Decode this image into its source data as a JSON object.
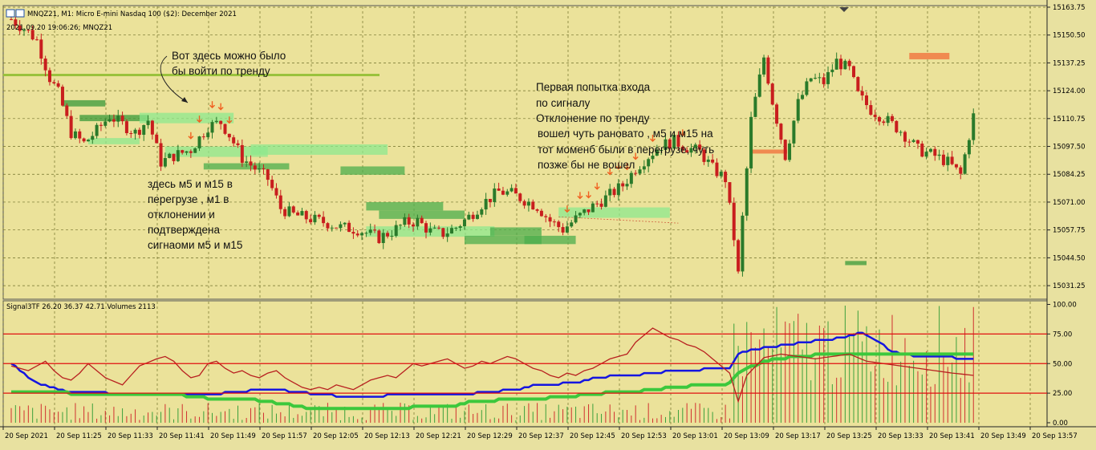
{
  "chart_title": "MNQZ21, M1:  Micro E-mini Nasdaq 100 ($2): December 2021",
  "cursor_info": "2021.09.20 19:06:26; MNQZ21",
  "indicator_label": "Signal3TF 26.20 36.37 42.71 Volumes 2113",
  "colors": {
    "background": "#ebe29a",
    "grid": "#70702a",
    "bull": "#2a7a2a",
    "bear": "#c81e1e",
    "line_blue": "#1515e0",
    "line_green": "#3cc83c",
    "line_red": "#b82020",
    "level_red": "#e01010",
    "zone_green": "#8ee88e",
    "zone_orange": "#f08a50"
  },
  "annotations": [
    {
      "lines": [
        "Вот здесь можно было",
        "бы войти по тренду"
      ]
    },
    {
      "lines": [
        "Первая попытка входа",
        "по сигналу",
        "Отклонение по тренду",
        "вошел чуть рановато , м5 и м15 на",
        "тот моменб были в перегрузе, чуть",
        "позже бы не вошел"
      ]
    },
    {
      "lines": [
        "здесь м5 и м15 в",
        "перегрузе , м1 в",
        "отклонении и",
        "подтверждена",
        "сигнаоми м5 и м15"
      ]
    }
  ],
  "chart_data": [
    {
      "type": "candlestick",
      "symbol": "MNQZ21",
      "timeframe": "M1",
      "price_axis_ticks": [
        "15163.75",
        "15150.50",
        "15137.25",
        "15124.00",
        "15110.75",
        "15097.50",
        "15084.25",
        "15071.00",
        "15057.75",
        "15044.50",
        "15031.25"
      ],
      "ylim": [
        15024.8,
        15164.5
      ],
      "time_axis_ticks": [
        "20 Sep 2021",
        "20 Sep 11:25",
        "20 Sep 11:33",
        "20 Sep 11:41",
        "20 Sep 11:49",
        "20 Sep 11:57",
        "20 Sep 12:05",
        "20 Sep 12:13",
        "20 Sep 12:21",
        "20 Sep 12:29",
        "20 Sep 12:37",
        "20 Sep 12:45",
        "20 Sep 12:53",
        "20 Sep 13:01",
        "20 Sep 13:09",
        "20 Sep 13:17",
        "20 Sep 13:25",
        "20 Sep 13:33",
        "20 Sep 13:41",
        "20 Sep 13:49",
        "20 Sep 13:57"
      ],
      "close_waypoints": [
        [
          0,
          15158
        ],
        [
          4,
          15152
        ],
        [
          6,
          15148
        ],
        [
          9,
          15130
        ],
        [
          11,
          15123
        ],
        [
          14,
          15104
        ],
        [
          17,
          15099
        ],
        [
          20,
          15105
        ],
        [
          23,
          15112
        ],
        [
          26,
          15108
        ],
        [
          29,
          15104
        ],
        [
          32,
          15110
        ],
        [
          35,
          15090
        ],
        [
          38,
          15093
        ],
        [
          42,
          15096
        ],
        [
          46,
          15107
        ],
        [
          49,
          15109
        ],
        [
          51,
          15103
        ],
        [
          54,
          15092
        ],
        [
          57,
          15087
        ],
        [
          60,
          15082
        ],
        [
          63,
          15068
        ],
        [
          66,
          15065
        ],
        [
          70,
          15063
        ],
        [
          74,
          15061
        ],
        [
          77,
          15059
        ],
        [
          81,
          15058
        ],
        [
          86,
          15054
        ],
        [
          89,
          15057
        ],
        [
          92,
          15061
        ],
        [
          95,
          15062
        ],
        [
          98,
          15057
        ],
        [
          101,
          15056
        ],
        [
          104,
          15059
        ],
        [
          107,
          15064
        ],
        [
          110,
          15070
        ],
        [
          114,
          15076
        ],
        [
          117,
          15075
        ],
        [
          120,
          15072
        ],
        [
          123,
          15069
        ],
        [
          126,
          15062
        ],
        [
          129,
          15058
        ],
        [
          132,
          15063
        ],
        [
          136,
          15069
        ],
        [
          139,
          15073
        ],
        [
          143,
          15079
        ],
        [
          146,
          15087
        ],
        [
          149,
          15093
        ],
        [
          152,
          15098
        ],
        [
          155,
          15100
        ],
        [
          158,
          15097
        ],
        [
          161,
          15095
        ],
        [
          164,
          15087
        ],
        [
          167,
          15082
        ],
        [
          170,
          15040
        ],
        [
          173,
          15110
        ],
        [
          176,
          15140
        ],
        [
          178,
          15119
        ],
        [
          181,
          15093
        ],
        [
          184,
          15118
        ],
        [
          187,
          15130
        ],
        [
          190,
          15128
        ],
        [
          193,
          15138
        ],
        [
          196,
          15134
        ],
        [
          198,
          15122
        ],
        [
          201,
          15115
        ],
        [
          204,
          15111
        ],
        [
          208,
          15105
        ],
        [
          212,
          15096
        ],
        [
          216,
          15093
        ],
        [
          219,
          15090
        ],
        [
          222,
          15084
        ],
        [
          225,
          15112
        ]
      ],
      "price_levels": [
        15131.5
      ],
      "signal_arrows_count": 24
    },
    {
      "type": "line",
      "name": "Signal3TF",
      "values_label": "26.20 36.37 42.71",
      "volumes": "2113",
      "y_ticks": [
        "100.00",
        "75.00",
        "50.00",
        "25.00",
        "0.00"
      ],
      "ylim": [
        0,
        100
      ],
      "levels": [
        25,
        50,
        75
      ],
      "series": [
        {
          "color": "blue",
          "waypoints": [
            [
              0,
              50
            ],
            [
              3,
              42
            ],
            [
              5,
              35
            ],
            [
              9,
              30
            ],
            [
              12,
              27
            ],
            [
              16,
              26
            ],
            [
              22,
              25
            ],
            [
              28,
              24
            ],
            [
              34,
              24
            ],
            [
              42,
              24
            ],
            [
              50,
              25
            ],
            [
              56,
              27
            ],
            [
              62,
              28
            ],
            [
              67,
              26
            ],
            [
              72,
              24
            ],
            [
              78,
              22
            ],
            [
              84,
              22
            ],
            [
              92,
              24
            ],
            [
              100,
              24
            ],
            [
              106,
              24
            ],
            [
              112,
              26
            ],
            [
              118,
              28
            ],
            [
              122,
              31
            ],
            [
              126,
              32
            ],
            [
              132,
              34
            ],
            [
              136,
              37
            ],
            [
              140,
              39
            ],
            [
              145,
              40
            ],
            [
              150,
              42
            ],
            [
              156,
              44
            ],
            [
              162,
              45
            ],
            [
              168,
              45
            ],
            [
              170,
              58
            ],
            [
              174,
              62
            ],
            [
              180,
              65
            ],
            [
              186,
              68
            ],
            [
              190,
              70
            ],
            [
              195,
              72
            ],
            [
              199,
              76
            ],
            [
              202,
              70
            ],
            [
              206,
              60
            ],
            [
              212,
              56
            ],
            [
              220,
              55
            ],
            [
              225,
              54
            ]
          ]
        },
        {
          "color": "green",
          "waypoints": [
            [
              0,
              26
            ],
            [
              10,
              26
            ],
            [
              16,
              24
            ],
            [
              24,
              24
            ],
            [
              30,
              24
            ],
            [
              40,
              23
            ],
            [
              48,
              20
            ],
            [
              54,
              20
            ],
            [
              60,
              18
            ],
            [
              70,
              12
            ],
            [
              80,
              12
            ],
            [
              88,
              12
            ],
            [
              94,
              13
            ],
            [
              98,
              14
            ],
            [
              104,
              14
            ],
            [
              108,
              18
            ],
            [
              114,
              19
            ],
            [
              120,
              20
            ],
            [
              126,
              21
            ],
            [
              130,
              22
            ],
            [
              136,
              24
            ],
            [
              142,
              26
            ],
            [
              146,
              26
            ],
            [
              150,
              28
            ],
            [
              156,
              30
            ],
            [
              162,
              32
            ],
            [
              168,
              33
            ],
            [
              170,
              42
            ],
            [
              176,
              52
            ],
            [
              182,
              55
            ],
            [
              188,
              57
            ],
            [
              194,
              58
            ],
            [
              198,
              58
            ],
            [
              206,
              58
            ],
            [
              215,
              58
            ],
            [
              225,
              57
            ]
          ]
        },
        {
          "color": "red",
          "waypoints": [
            [
              0,
              48
            ],
            [
              4,
              44
            ],
            [
              6,
              48
            ],
            [
              8,
              52
            ],
            [
              10,
              44
            ],
            [
              12,
              38
            ],
            [
              14,
              36
            ],
            [
              16,
              42
            ],
            [
              18,
              50
            ],
            [
              20,
              44
            ],
            [
              22,
              38
            ],
            [
              24,
              35
            ],
            [
              26,
              32
            ],
            [
              28,
              40
            ],
            [
              30,
              48
            ],
            [
              34,
              54
            ],
            [
              36,
              56
            ],
            [
              38,
              52
            ],
            [
              40,
              44
            ],
            [
              42,
              38
            ],
            [
              44,
              40
            ],
            [
              46,
              50
            ],
            [
              48,
              52
            ],
            [
              50,
              46
            ],
            [
              52,
              42
            ],
            [
              54,
              44
            ],
            [
              56,
              40
            ],
            [
              58,
              38
            ],
            [
              60,
              42
            ],
            [
              62,
              44
            ],
            [
              64,
              38
            ],
            [
              66,
              34
            ],
            [
              68,
              30
            ],
            [
              70,
              28
            ],
            [
              72,
              30
            ],
            [
              74,
              28
            ],
            [
              76,
              32
            ],
            [
              78,
              30
            ],
            [
              80,
              28
            ],
            [
              84,
              36
            ],
            [
              88,
              40
            ],
            [
              90,
              38
            ],
            [
              92,
              44
            ],
            [
              94,
              50
            ],
            [
              96,
              48
            ],
            [
              100,
              52
            ],
            [
              102,
              54
            ],
            [
              104,
              50
            ],
            [
              106,
              46
            ],
            [
              108,
              48
            ],
            [
              110,
              52
            ],
            [
              112,
              50
            ],
            [
              116,
              56
            ],
            [
              118,
              54
            ],
            [
              120,
              50
            ],
            [
              122,
              46
            ],
            [
              124,
              44
            ],
            [
              126,
              40
            ],
            [
              128,
              38
            ],
            [
              130,
              42
            ],
            [
              132,
              40
            ],
            [
              134,
              44
            ],
            [
              136,
              46
            ],
            [
              138,
              50
            ],
            [
              140,
              54
            ],
            [
              144,
              58
            ],
            [
              146,
              68
            ],
            [
              148,
              74
            ],
            [
              150,
              80
            ],
            [
              152,
              76
            ],
            [
              154,
              72
            ],
            [
              156,
              70
            ],
            [
              158,
              66
            ],
            [
              160,
              64
            ],
            [
              162,
              60
            ],
            [
              164,
              54
            ],
            [
              166,
              48
            ],
            [
              168,
              42
            ],
            [
              170,
              18
            ],
            [
              172,
              40
            ],
            [
              176,
              55
            ],
            [
              180,
              58
            ],
            [
              184,
              56
            ],
            [
              188,
              54
            ],
            [
              192,
              56
            ],
            [
              196,
              58
            ],
            [
              200,
              52
            ],
            [
              204,
              50
            ],
            [
              208,
              48
            ],
            [
              212,
              46
            ],
            [
              216,
              44
            ],
            [
              220,
              42
            ],
            [
              225,
              40
            ]
          ]
        }
      ]
    }
  ]
}
